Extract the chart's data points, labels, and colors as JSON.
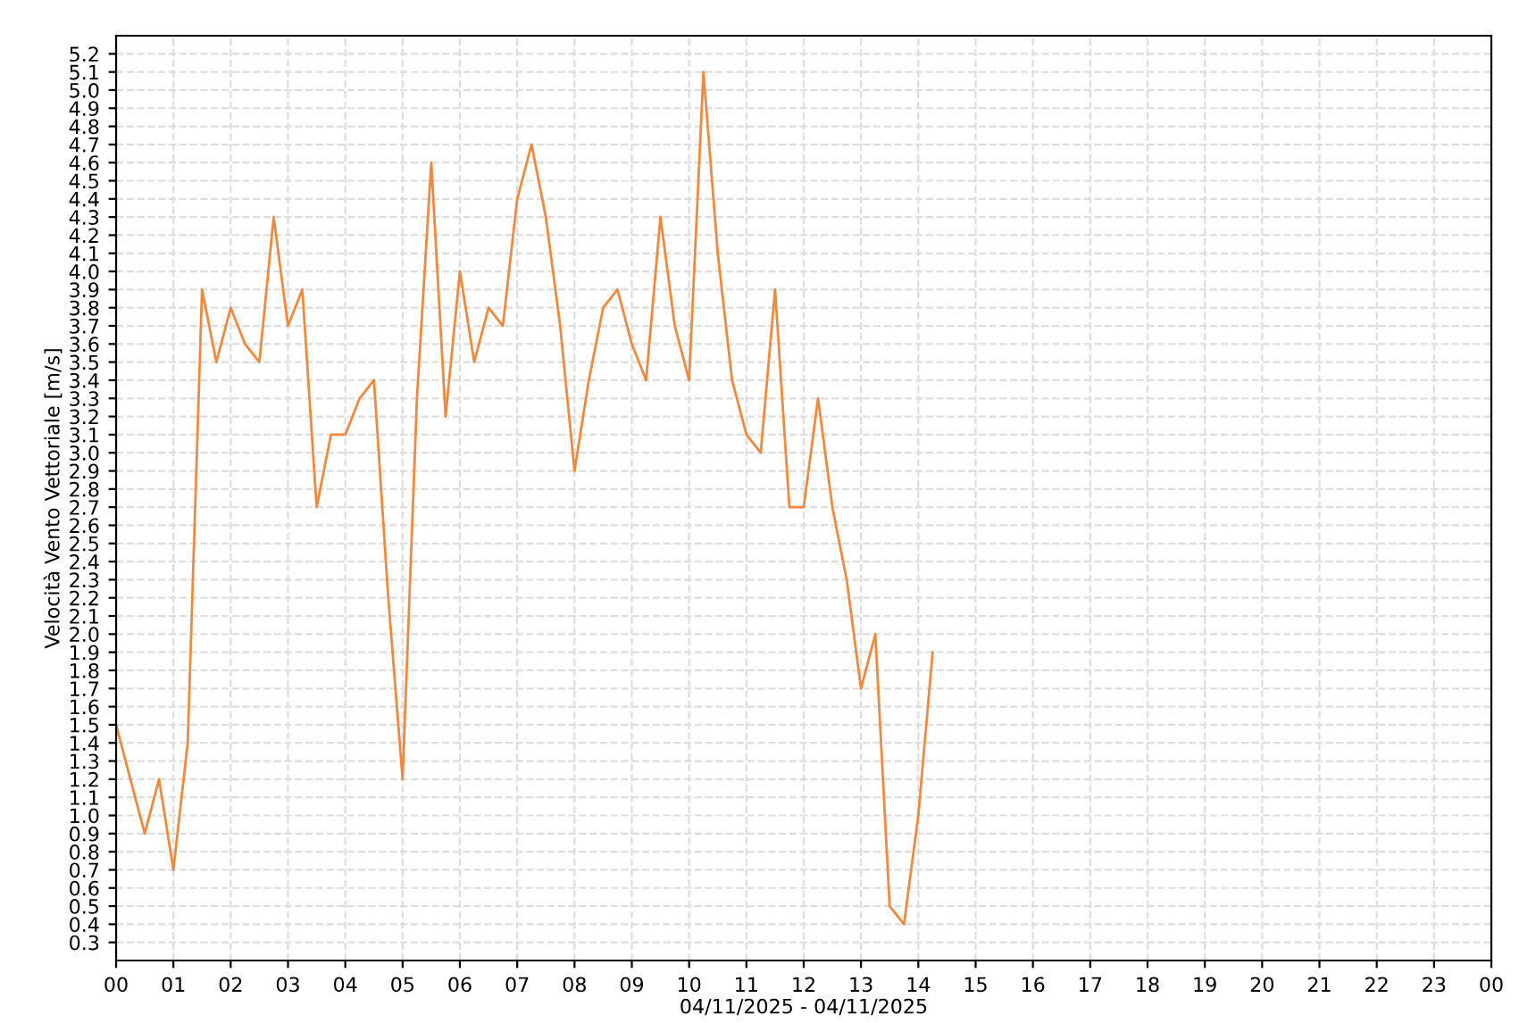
{
  "chart_data": {
    "type": "line",
    "xlabel": "04/11/2025 - 04/11/2025",
    "ylabel": "Velocità Vento Vettoriale [m/s]",
    "x": [
      0,
      0.25,
      0.5,
      0.75,
      1,
      1.25,
      1.5,
      1.75,
      2,
      2.25,
      2.5,
      2.75,
      3,
      3.25,
      3.5,
      3.75,
      4,
      4.25,
      4.5,
      4.75,
      5,
      5.25,
      5.5,
      5.75,
      6,
      6.25,
      6.5,
      6.75,
      7,
      7.25,
      7.5,
      7.75,
      8,
      8.25,
      8.5,
      8.75,
      9,
      9.25,
      9.5,
      9.75,
      10,
      10.25,
      10.5,
      10.75,
      11,
      11.25,
      11.5,
      11.75,
      12,
      12.25,
      12.5,
      12.75,
      13,
      13.25,
      13.5,
      13.75,
      14,
      14.25
    ],
    "series": [
      {
        "color": "#f0883e",
        "values": [
          1.5,
          1.2,
          0.9,
          1.2,
          0.7,
          1.4,
          3.9,
          3.5,
          3.8,
          3.6,
          3.5,
          4.3,
          3.7,
          3.9,
          2.7,
          3.1,
          3.1,
          3.3,
          3.4,
          2.2,
          1.2,
          3.3,
          4.6,
          3.2,
          4.0,
          3.5,
          3.8,
          3.7,
          4.4,
          4.7,
          4.3,
          3.7,
          2.9,
          3.4,
          3.8,
          3.9,
          3.6,
          3.4,
          4.3,
          3.7,
          3.4,
          5.1,
          4.1,
          3.4,
          3.1,
          3.0,
          3.9,
          2.7,
          2.7,
          3.3,
          2.7,
          2.3,
          1.7,
          2.0,
          0.5,
          0.4,
          1.0,
          1.9
        ]
      }
    ],
    "xlim": [
      0,
      24
    ],
    "xticks": [
      {
        "value": 0,
        "label": "00"
      },
      {
        "value": 1,
        "label": "01"
      },
      {
        "value": 2,
        "label": "02"
      },
      {
        "value": 3,
        "label": "03"
      },
      {
        "value": 4,
        "label": "04"
      },
      {
        "value": 5,
        "label": "05"
      },
      {
        "value": 6,
        "label": "06"
      },
      {
        "value": 7,
        "label": "07"
      },
      {
        "value": 8,
        "label": "08"
      },
      {
        "value": 9,
        "label": "09"
      },
      {
        "value": 10,
        "label": "10"
      },
      {
        "value": 11,
        "label": "11"
      },
      {
        "value": 12,
        "label": "12"
      },
      {
        "value": 13,
        "label": "13"
      },
      {
        "value": 14,
        "label": "14"
      },
      {
        "value": 15,
        "label": "15"
      },
      {
        "value": 16,
        "label": "16"
      },
      {
        "value": 17,
        "label": "17"
      },
      {
        "value": 18,
        "label": "18"
      },
      {
        "value": 19,
        "label": "19"
      },
      {
        "value": 20,
        "label": "20"
      },
      {
        "value": 21,
        "label": "21"
      },
      {
        "value": 22,
        "label": "22"
      },
      {
        "value": 23,
        "label": "23"
      },
      {
        "value": 24,
        "label": "00"
      }
    ],
    "ylim": [
      0.2,
      5.3
    ],
    "yticks": [
      0.3,
      0.4,
      0.5,
      0.6,
      0.7,
      0.8,
      0.9,
      {
        "value": 1.0,
        "label": "1.0"
      },
      1.1,
      1.2,
      1.3,
      1.4,
      1.5,
      1.6,
      1.7,
      1.8,
      1.9,
      {
        "value": 2.0,
        "label": "2.0"
      },
      2.1,
      2.2,
      2.3,
      2.4,
      2.5,
      2.6,
      2.7,
      2.8,
      2.9,
      {
        "value": 3.0,
        "label": "3.0"
      },
      3.1,
      3.2,
      3.3,
      3.4,
      3.5,
      3.6,
      3.7,
      3.8,
      3.9,
      {
        "value": 4.0,
        "label": "4.0"
      },
      4.1,
      4.2,
      4.3,
      4.4,
      4.5,
      4.6,
      4.7,
      4.8,
      4.9,
      {
        "value": 5.0,
        "label": "5.0"
      },
      5.1,
      5.2
    ],
    "grid": true,
    "legend": false,
    "marker": "none",
    "line_style": "solid"
  }
}
